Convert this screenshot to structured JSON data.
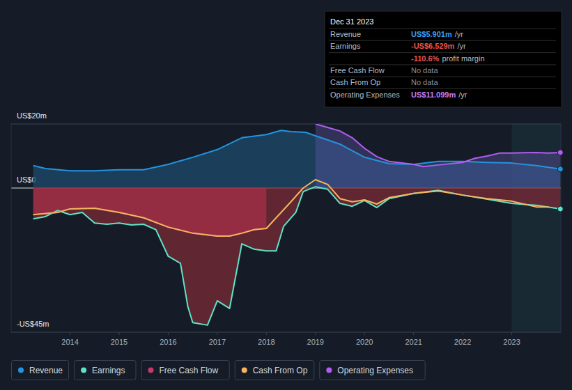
{
  "chart_data": {
    "type": "line",
    "xlim": [
      2012.8,
      2024.0
    ],
    "xticks": [
      2014,
      2015,
      2016,
      2017,
      2018,
      2019,
      2020,
      2021,
      2022,
      2023
    ],
    "ylim": [
      -45,
      20
    ],
    "yticks": [
      {
        "value": 20,
        "label": "US$20m"
      },
      {
        "value": 0,
        "label": "US$0"
      },
      {
        "value": -45,
        "label": "-US$45m"
      }
    ],
    "grid": true,
    "legend": "bottom",
    "series": [
      {
        "name": "Revenue",
        "color": "#2394df",
        "x": [
          2013.25,
          2013.5,
          2014,
          2014.5,
          2015,
          2015.5,
          2016,
          2016.5,
          2017,
          2017.5,
          2018,
          2018.3,
          2018.5,
          2018.8,
          2019,
          2019.5,
          2020,
          2020.5,
          2021,
          2021.5,
          2022,
          2022.5,
          2023,
          2023.5,
          2023.99
        ],
        "values": [
          7.0,
          6.1,
          5.4,
          5.4,
          5.7,
          5.7,
          7.4,
          9.6,
          12.0,
          15.7,
          16.7,
          18.0,
          17.6,
          17.4,
          16.3,
          13.7,
          9.6,
          7.6,
          7.4,
          8.3,
          8.3,
          8.0,
          7.8,
          7.0,
          5.901
        ]
      },
      {
        "name": "Earnings",
        "color": "#5fe3c6",
        "x": [
          2013.25,
          2013.5,
          2013.75,
          2014,
          2014.25,
          2014.5,
          2014.75,
          2015,
          2015.25,
          2015.5,
          2015.75,
          2016,
          2016.25,
          2016.4,
          2016.5,
          2016.8,
          2017,
          2017.25,
          2017.5,
          2017.75,
          2018,
          2018.2,
          2018.35,
          2018.6,
          2018.75,
          2019,
          2019.25,
          2019.5,
          2019.75,
          2020,
          2020.25,
          2020.5,
          2021,
          2021.5,
          2022,
          2022.5,
          2023,
          2023.5,
          2023.99
        ],
        "values": [
          -9.6,
          -8.9,
          -7.0,
          -8.3,
          -7.6,
          -10.9,
          -11.3,
          -10.9,
          -11.5,
          -11.3,
          -13.0,
          -21.3,
          -23.5,
          -37.0,
          -42.0,
          -42.8,
          -35.2,
          -37.6,
          -17.4,
          -19.1,
          -19.6,
          -19.6,
          -12.0,
          -7.6,
          -1.1,
          0.4,
          -0.4,
          -4.8,
          -5.7,
          -3.9,
          -6.1,
          -3.3,
          -1.7,
          -0.7,
          -2.2,
          -3.5,
          -4.8,
          -5.4,
          -6.529
        ]
      },
      {
        "name": "Free Cash Flow",
        "color": "#c33a6b",
        "x": [
          2013.25,
          2013.75,
          2014,
          2014.5,
          2015,
          2015.5,
          2016,
          2016.5,
          2017,
          2017.25,
          2017.5,
          2017.75,
          2018
        ],
        "values": [
          -8.3,
          -7.6,
          -6.5,
          -6.3,
          -7.6,
          -9.3,
          -12.2,
          -14.1,
          -15.0,
          -15.0,
          -14.1,
          -13.0,
          -12.6
        ]
      },
      {
        "name": "Cash From Op",
        "color": "#f5b55f",
        "x": [
          2013.25,
          2013.75,
          2014,
          2014.5,
          2015,
          2015.5,
          2016,
          2016.5,
          2017,
          2017.25,
          2017.5,
          2017.75,
          2018,
          2018.5,
          2018.75,
          2019,
          2019.25,
          2019.5,
          2019.75,
          2020,
          2020.25,
          2020.5,
          2021,
          2021.5,
          2022,
          2022.5,
          2023,
          2023.5,
          2023.75
        ],
        "values": [
          -8.3,
          -7.6,
          -6.5,
          -6.3,
          -7.6,
          -9.3,
          -12.2,
          -14.1,
          -15.0,
          -15.0,
          -14.1,
          -13.0,
          -12.6,
          -4.3,
          0.0,
          2.6,
          1.1,
          -3.3,
          -4.3,
          -3.7,
          -5.0,
          -3.0,
          -1.7,
          -0.9,
          -2.2,
          -3.3,
          -4.1,
          -5.9,
          -5.9
        ]
      },
      {
        "name": "Operating Expenses",
        "color": "#b15df1",
        "x": [
          2019,
          2019.25,
          2019.5,
          2019.75,
          2020,
          2020.25,
          2020.5,
          2021,
          2021.2,
          2021.5,
          2022,
          2022.25,
          2022.5,
          2022.75,
          2023,
          2023.5,
          2023.75,
          2023.99
        ],
        "values": [
          20.0,
          18.9,
          17.8,
          15.7,
          12.4,
          9.8,
          8.3,
          7.4,
          6.7,
          7.2,
          8.0,
          9.3,
          10.0,
          10.9,
          10.9,
          11.1,
          10.9,
          11.099
        ]
      }
    ],
    "tooltip": {
      "date": "Dec 31 2023",
      "rows": [
        {
          "label": "Revenue",
          "value": "US$5.901m",
          "unit": "/yr"
        },
        {
          "label": "Earnings",
          "value": "-US$6.529m",
          "unit": "/yr"
        },
        {
          "value": "-110.6%",
          "unit": "profit margin"
        },
        {
          "label": "Free Cash Flow",
          "value": "No data"
        },
        {
          "label": "Cash From Op",
          "value": "No data"
        },
        {
          "label": "Operating Expenses",
          "value": "US$11.099m",
          "unit": "/yr"
        }
      ]
    }
  }
}
